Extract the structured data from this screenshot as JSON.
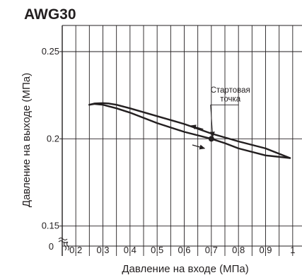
{
  "chart_data": {
    "type": "line",
    "title": "AWG30",
    "xlabel": "Давление на входе (МПа)",
    "ylabel": "Давление на выходе (МПа)",
    "xlim": [
      0.15,
      1.05
    ],
    "ylim": [
      0.145,
      0.265
    ],
    "x_ticks": [
      {
        "value": 0.2,
        "label": "0.2"
      },
      {
        "value": 0.3,
        "label": "0.3"
      },
      {
        "value": 0.4,
        "label": "0.4"
      },
      {
        "value": 0.5,
        "label": "0.5"
      },
      {
        "value": 0.6,
        "label": "0.6"
      },
      {
        "value": 0.7,
        "label": "0.7"
      },
      {
        "value": 0.8,
        "label": "0.8"
      },
      {
        "value": 0.9,
        "label": "0.9"
      },
      {
        "value": 1.0,
        "label": "1"
      }
    ],
    "x_grid": [
      0.2,
      0.25,
      0.3,
      0.35,
      0.4,
      0.45,
      0.5,
      0.55,
      0.6,
      0.65,
      0.7,
      0.75,
      0.8,
      0.85,
      0.9,
      0.95,
      1.0,
      1.05
    ],
    "y_ticks": [
      {
        "value": 0.15,
        "label": "0.15"
      },
      {
        "value": 0.2,
        "label": "0.2"
      },
      {
        "value": 0.25,
        "label": "0.25"
      }
    ],
    "y_zero_label": "0",
    "grid": true,
    "series": [
      {
        "x": [
          0.25,
          0.27,
          0.3,
          0.32,
          0.35,
          0.4,
          0.5,
          0.6,
          0.7,
          0.8,
          0.9,
          0.99
        ],
        "y": [
          0.2195,
          0.2203,
          0.2205,
          0.2203,
          0.2195,
          0.2175,
          0.213,
          0.2085,
          0.203,
          0.1985,
          0.1945,
          0.189
        ]
      },
      {
        "x": [
          0.99,
          0.9,
          0.8,
          0.75,
          0.7,
          0.6,
          0.5,
          0.4,
          0.35,
          0.3,
          0.27,
          0.25
        ],
        "y": [
          0.189,
          0.1905,
          0.1945,
          0.1975,
          0.2,
          0.204,
          0.209,
          0.215,
          0.2175,
          0.2195,
          0.22,
          0.2195
        ]
      }
    ],
    "start_point": {
      "x": 0.7,
      "y": 0.2
    },
    "annotations": [
      {
        "text": "Стартовая",
        "x": 0.77,
        "y": 0.2265
      },
      {
        "text": "точка",
        "x": 0.77,
        "y": 0.2215
      }
    ],
    "direction_arrows": [
      {
        "from": [
          0.67,
          0.2055
        ],
        "to": [
          0.625,
          0.2075
        ]
      },
      {
        "from": [
          0.63,
          0.1965
        ],
        "to": [
          0.675,
          0.1945
        ]
      }
    ],
    "colors": {
      "line": "#231f20",
      "grid": "#231f20"
    }
  }
}
